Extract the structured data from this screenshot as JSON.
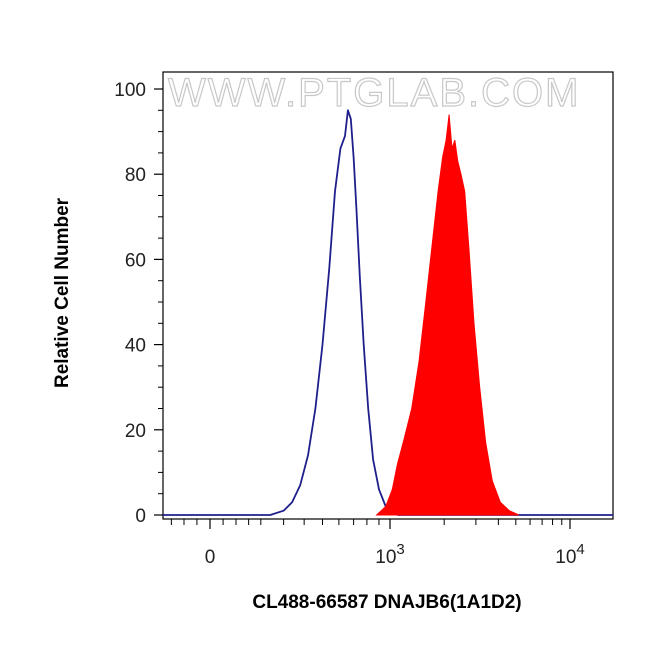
{
  "chart_data": {
    "type": "area",
    "title": "",
    "xlabel": "CL488-66587 DNAJB6(1A1D2)",
    "ylabel": "Relative Cell Number",
    "x_scale": "biexponential",
    "xlim": [
      -250,
      14000
    ],
    "ylim": [
      0,
      100
    ],
    "x_ticks": [
      {
        "value": 0,
        "label": "0",
        "sup": ""
      },
      {
        "value": 1000,
        "label": "10",
        "sup": "3"
      },
      {
        "value": 10000,
        "label": "10",
        "sup": "4"
      }
    ],
    "y_ticks": [
      "0",
      "20",
      "40",
      "60",
      "80",
      "100"
    ],
    "grid": false,
    "watermark": "WWW.PTGLAB.COM",
    "series": [
      {
        "style": "outline",
        "color": "#1f1f8c",
        "x": [
          240,
          300,
          340,
          380,
          420,
          460,
          500,
          540,
          575,
          610,
          640,
          660,
          680,
          700,
          720,
          745,
          775,
          810,
          850,
          900,
          960,
          1030,
          1110
        ],
        "y": [
          0,
          1,
          3,
          7,
          14,
          25,
          40,
          58,
          76,
          86,
          89,
          95,
          93,
          84,
          72,
          56,
          40,
          25,
          13,
          6,
          2,
          0.6,
          0
        ]
      },
      {
        "style": "filled",
        "color": "#ff0000",
        "x": [
          880,
          960,
          1030,
          1100,
          1200,
          1320,
          1450,
          1580,
          1720,
          1850,
          1960,
          2050,
          2130,
          2210,
          2290,
          2380,
          2480,
          2600,
          2750,
          2930,
          3150,
          3400,
          3700,
          4100,
          4600,
          5200
        ],
        "y": [
          0,
          2,
          6,
          12,
          18,
          25,
          36,
          50,
          64,
          76,
          84,
          88,
          94,
          86,
          88,
          83,
          80,
          76,
          62,
          45,
          30,
          17,
          8,
          3,
          1,
          0
        ]
      }
    ]
  }
}
